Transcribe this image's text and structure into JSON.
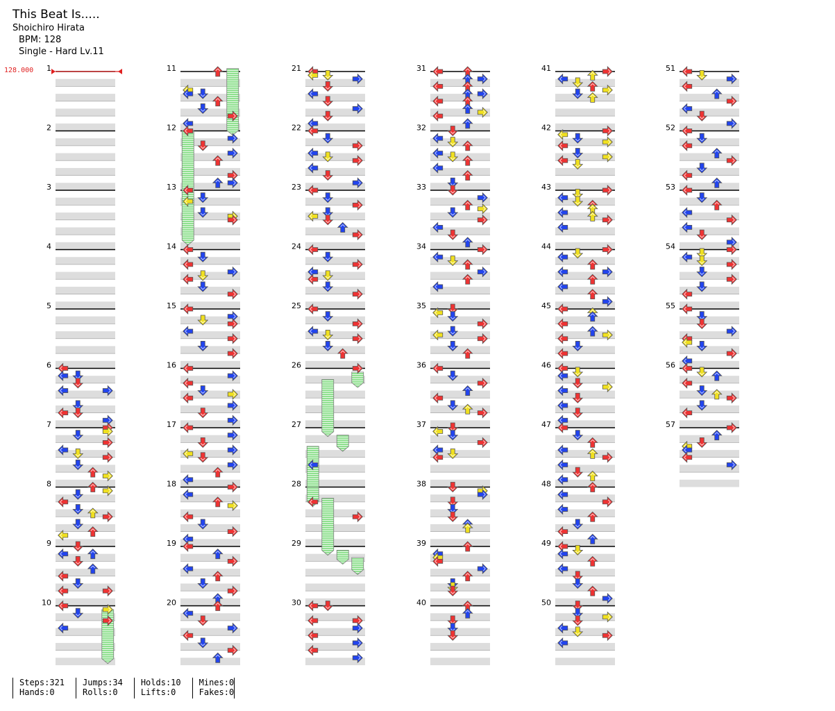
{
  "header": {
    "title": "This Beat Is.....",
    "artist": "Shoichiro Hirata",
    "bpm_text": "BPM: 128",
    "difficulty_text": "Single - Hard  Lv.11"
  },
  "bpm_marker": {
    "label": "128.000",
    "color": "#e02020"
  },
  "colors": {
    "quarter_note": "#ee3333",
    "eighth_note": "#2244ee",
    "sixteenth_note": "#f0e020",
    "hold_body": "#8fe08f",
    "measure_band": "#dddddd"
  },
  "icon_names": [
    "left-arrow-icon",
    "down-arrow-icon",
    "up-arrow-icon",
    "right-arrow-icon",
    "hold-note-icon"
  ],
  "measure_labels": [
    "1",
    "2",
    "3",
    "4",
    "5",
    "6",
    "7",
    "8",
    "9",
    "10",
    "11",
    "12",
    "13",
    "14",
    "15",
    "16",
    "17",
    "18",
    "19",
    "20",
    "21",
    "22",
    "23",
    "24",
    "25",
    "26",
    "27",
    "28",
    "29",
    "30",
    "31",
    "32",
    "33",
    "34",
    "35",
    "36",
    "37",
    "38",
    "39",
    "40",
    "41",
    "42",
    "43",
    "44",
    "45",
    "46",
    "47",
    "48",
    "49",
    "50",
    "51",
    "52",
    "53",
    "54",
    "55",
    "56",
    "57"
  ],
  "stats": [
    {
      "top": "Steps:321",
      "bottom": "Hands:0"
    },
    {
      "top": "Jumps:34",
      "bottom": "Rolls:0"
    },
    {
      "top": "Holds:10",
      "bottom": "Lifts:0"
    },
    {
      "top": "Mines:0",
      "bottom": "Fakes:0"
    }
  ]
}
